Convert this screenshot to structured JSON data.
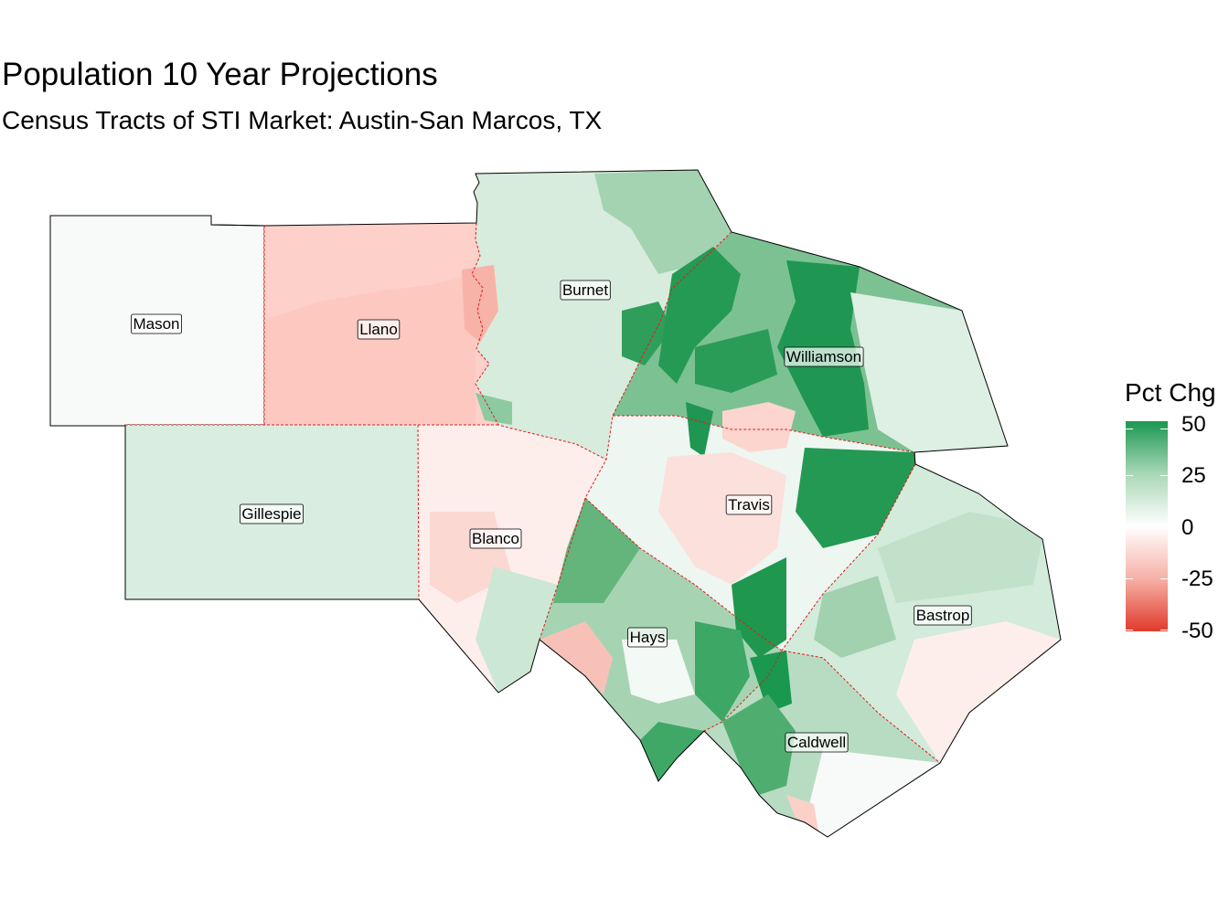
{
  "title": "Population 10 Year Projections",
  "subtitle": "Census Tracts of STI Market: Austin-San Marcos, TX",
  "legend": {
    "title": "Pct Chg",
    "ticks": [
      "50",
      "25",
      "0",
      "-25",
      "-50"
    ],
    "colors": {
      "high": "#1a9850",
      "mid": "#ffffff",
      "low": "#e03b2c"
    }
  },
  "counties": [
    {
      "id": "mason",
      "label": "Mason",
      "fill": "#f8faf9"
    },
    {
      "id": "llano",
      "label": "Llano",
      "fill": "#fdd0c9"
    },
    {
      "id": "burnet",
      "label": "Burnet",
      "fill": "#d7ecdd"
    },
    {
      "id": "gillespie",
      "label": "Gillespie",
      "fill": "#d9ede0"
    },
    {
      "id": "blanco",
      "label": "Blanco",
      "fill": "#fdeeec"
    },
    {
      "id": "williamson",
      "label": "Williamson",
      "fill": "#6fbb87"
    },
    {
      "id": "travis",
      "label": "Travis",
      "fill": "#f6f1ef"
    },
    {
      "id": "hays",
      "label": "Hays",
      "fill": "#a6d4b3"
    },
    {
      "id": "bastrop",
      "label": "Bastrop",
      "fill": "#d3ebda"
    },
    {
      "id": "caldwell",
      "label": "Caldwell",
      "fill": "#b8dcc2"
    }
  ]
}
